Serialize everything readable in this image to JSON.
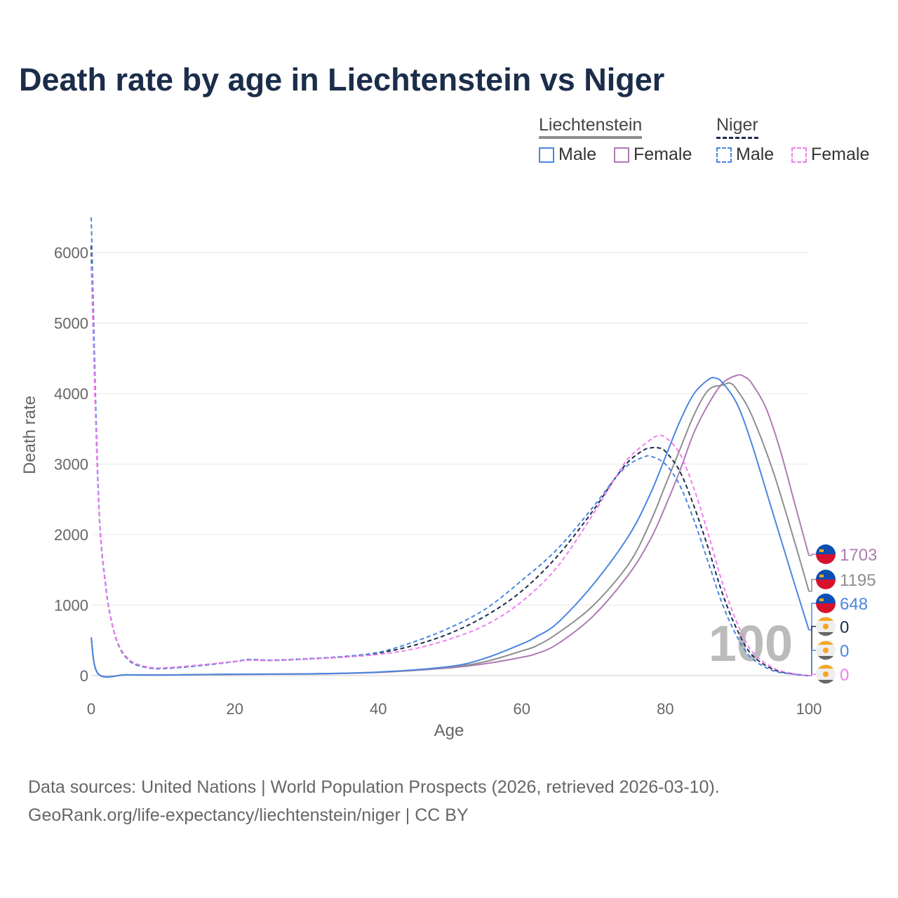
{
  "title": "Death rate by age in Liechtenstein vs Niger",
  "legend": {
    "groups": [
      {
        "name": "Liechtenstein",
        "items": [
          "Male",
          "Female"
        ]
      },
      {
        "name": "Niger",
        "items": [
          "Male",
          "Female"
        ]
      }
    ]
  },
  "sources": [
    "Data sources: United Nations | World Population Prospects (2026, retrieved 2026-03-10).",
    "GeoRank.org/life-expectancy/liechtenstein/niger | CC BY"
  ],
  "colors": {
    "li_male": "#4a86e0",
    "li_total": "#8e8e8e",
    "li_female": "#b07ab5",
    "ne_male": "#4a86e0",
    "ne_total": "#1b2d4a",
    "ne_female": "#f07ef0"
  },
  "chart_data": {
    "type": "line",
    "title": "Death rate by age in Liechtenstein vs Niger",
    "xlabel": "Age",
    "ylabel": "Death rate",
    "xlim": [
      0,
      100
    ],
    "ylim": [
      0,
      6500
    ],
    "xticks": [
      0,
      20,
      40,
      60,
      80,
      100
    ],
    "yticks": [
      0,
      1000,
      2000,
      3000,
      4000,
      5000,
      6000
    ],
    "current_age_label": "100",
    "series": [
      {
        "name": "Liechtenstein Female",
        "key": "li_female",
        "dashed": false,
        "end_label": "1703",
        "flag": "liechtenstein",
        "x": [
          0,
          1,
          5,
          10,
          20,
          30,
          40,
          50,
          55,
          60,
          62,
          65,
          70,
          75,
          78,
          80,
          82,
          84,
          86,
          88,
          90,
          91,
          92,
          94,
          96,
          98,
          100
        ],
        "y": [
          540,
          25,
          12,
          8,
          18,
          22,
          45,
          110,
          170,
          260,
          310,
          450,
          850,
          1450,
          1950,
          2400,
          2900,
          3450,
          3850,
          4150,
          4260,
          4240,
          4150,
          3800,
          3200,
          2450,
          1703
        ]
      },
      {
        "name": "Liechtenstein Total",
        "key": "li_total",
        "dashed": false,
        "end_label": "1195",
        "flag": "liechtenstein",
        "x": [
          0,
          1,
          5,
          10,
          20,
          30,
          40,
          50,
          55,
          60,
          62,
          65,
          70,
          75,
          78,
          80,
          82,
          84,
          86,
          88,
          89,
          90,
          92,
          95,
          98,
          100
        ],
        "y": [
          540,
          22,
          11,
          8,
          19,
          24,
          48,
          120,
          200,
          350,
          420,
          600,
          1000,
          1600,
          2200,
          2700,
          3200,
          3700,
          4050,
          4120,
          4150,
          4050,
          3700,
          2900,
          1900,
          1195
        ]
      },
      {
        "name": "Liechtenstein Male",
        "key": "li_male",
        "dashed": false,
        "end_label": "648",
        "flag": "liechtenstein",
        "x": [
          0,
          1,
          5,
          10,
          20,
          30,
          40,
          50,
          55,
          60,
          62,
          65,
          70,
          75,
          78,
          80,
          82,
          84,
          86,
          87,
          88,
          90,
          92,
          95,
          98,
          100
        ],
        "y": [
          540,
          20,
          10,
          8,
          20,
          25,
          50,
          130,
          250,
          450,
          550,
          750,
          1300,
          2000,
          2600,
          3100,
          3600,
          4000,
          4200,
          4220,
          4150,
          3850,
          3300,
          2300,
          1300,
          648
        ]
      },
      {
        "name": "Niger Total",
        "key": "ne_total",
        "dashed": true,
        "end_label": "0",
        "flag": "niger",
        "x": [
          0,
          1,
          2,
          3,
          4,
          5,
          6,
          8,
          10,
          15,
          20,
          22,
          25,
          30,
          35,
          40,
          45,
          50,
          55,
          60,
          65,
          70,
          73,
          75,
          77,
          78,
          79,
          80,
          82,
          84,
          86,
          88,
          90,
          92,
          95,
          98,
          100
        ],
        "y": [
          6100,
          2550,
          1280,
          690,
          390,
          245,
          165,
          110,
          100,
          140,
          200,
          225,
          215,
          235,
          265,
          320,
          430,
          600,
          850,
          1200,
          1700,
          2350,
          2800,
          3050,
          3200,
          3230,
          3230,
          3180,
          2900,
          2400,
          1800,
          1150,
          650,
          300,
          90,
          20,
          0
        ]
      },
      {
        "name": "Niger Male",
        "key": "ne_male",
        "dashed": true,
        "end_label": "0",
        "flag": "niger",
        "x": [
          0,
          1,
          2,
          3,
          4,
          5,
          6,
          8,
          10,
          15,
          20,
          22,
          25,
          30,
          35,
          40,
          45,
          50,
          55,
          60,
          65,
          70,
          73,
          75,
          77,
          78,
          80,
          82,
          84,
          86,
          88,
          90,
          92,
          95,
          98,
          100
        ],
        "y": [
          6500,
          2600,
          1300,
          700,
          400,
          250,
          170,
          110,
          100,
          140,
          200,
          230,
          220,
          240,
          270,
          330,
          480,
          680,
          950,
          1350,
          1800,
          2400,
          2800,
          3000,
          3100,
          3110,
          3000,
          2700,
          2200,
          1600,
          1000,
          550,
          250,
          70,
          20,
          0
        ]
      },
      {
        "name": "Niger Female",
        "key": "ne_female",
        "dashed": true,
        "end_label": "0",
        "flag": "niger",
        "x": [
          0,
          1,
          2,
          3,
          4,
          5,
          6,
          8,
          10,
          15,
          20,
          22,
          25,
          30,
          35,
          40,
          45,
          50,
          55,
          60,
          65,
          70,
          73,
          75,
          78,
          79,
          80,
          82,
          84,
          86,
          88,
          90,
          92,
          95,
          98,
          100
        ],
        "y": [
          5800,
          2500,
          1260,
          690,
          400,
          260,
          180,
          120,
          110,
          150,
          200,
          220,
          215,
          235,
          260,
          300,
          380,
          520,
          720,
          1050,
          1550,
          2300,
          2800,
          3100,
          3350,
          3400,
          3380,
          3150,
          2650,
          2000,
          1300,
          750,
          350,
          110,
          25,
          0
        ]
      }
    ]
  }
}
